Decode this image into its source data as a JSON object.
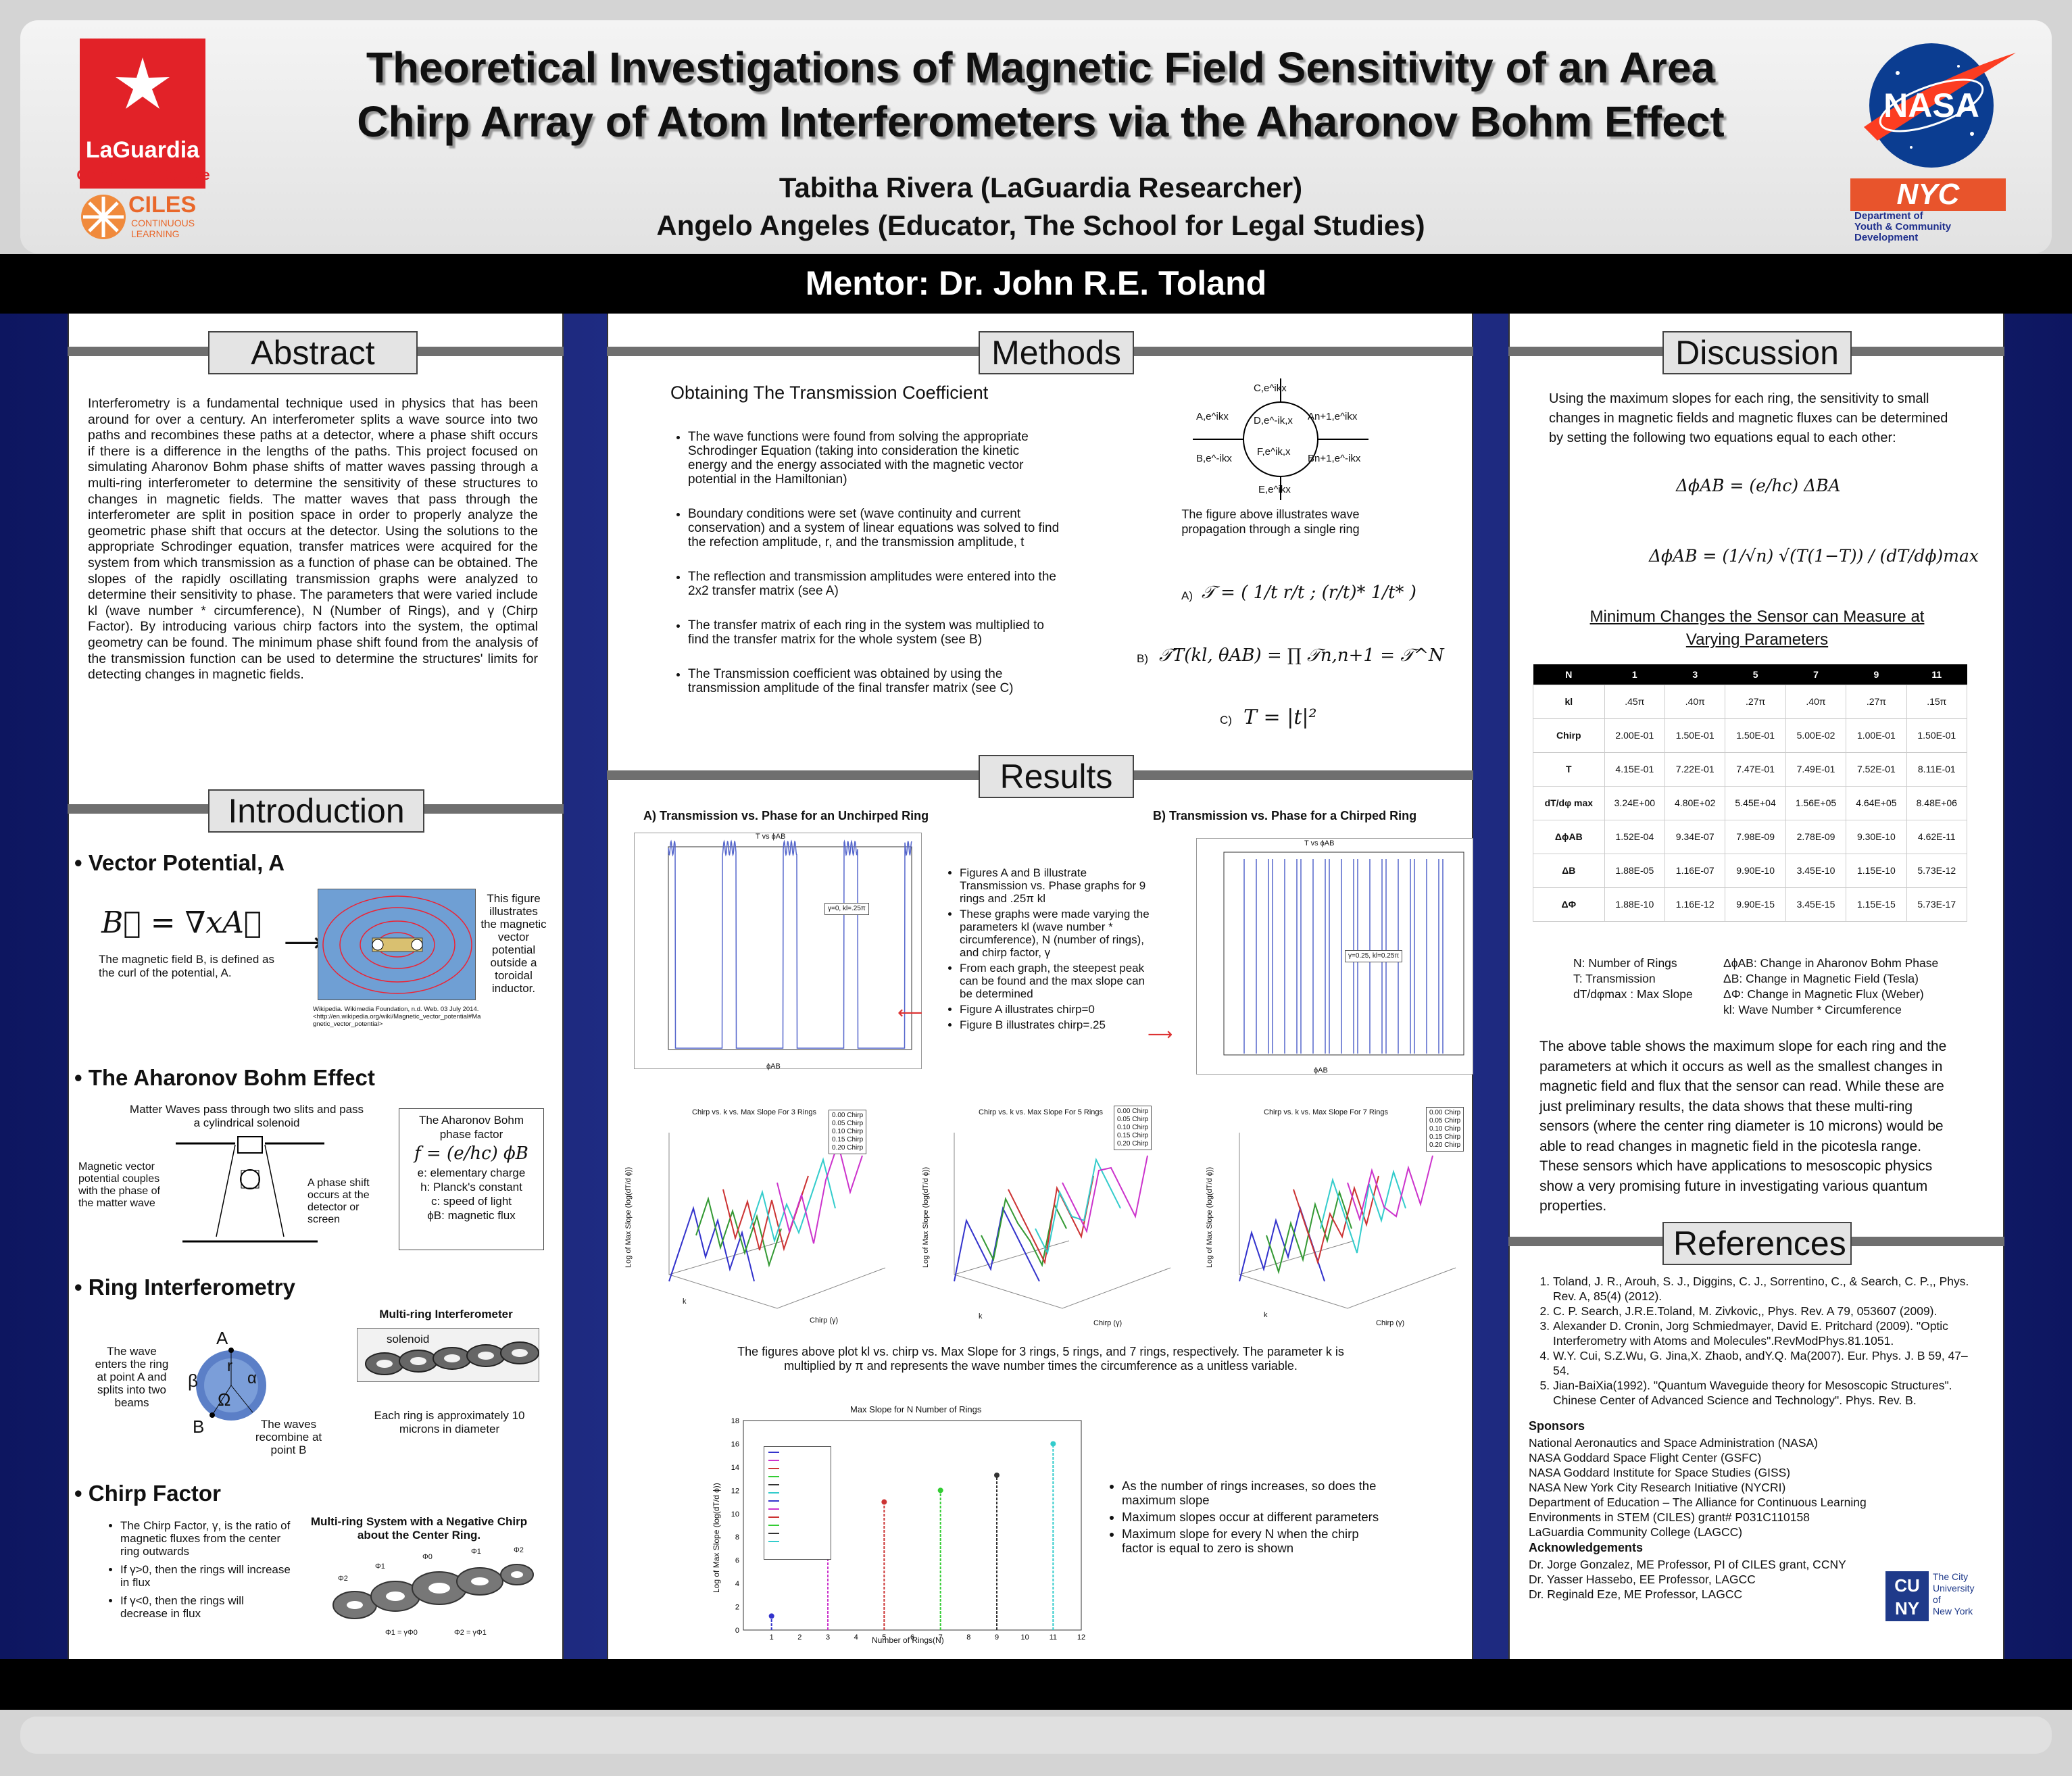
{
  "header": {
    "title_line1": "Theoretical Investigations of Magnetic Field Sensitivity of an Area",
    "title_line2": "Chirp Array of Atom Interferometers via the Aharonov Bohm Effect",
    "author1": "Tabitha Rivera (LaGuardia Researcher)",
    "author2": "Angelo Angeles (Educator, The School for Legal Studies)",
    "mentor": "Mentor:  Dr. John R.E. Toland",
    "logo_laguardia_line1": "LaGuardia",
    "logo_laguardia_line2": "Community College",
    "logo_ciles": "CILES",
    "logo_ciles_sub1": "CONTINUOUS",
    "logo_ciles_sub2": "LEARNING",
    "logo_nasa": "NASA",
    "logo_nyc": "NYC",
    "logo_nyc_sub1": "Department of",
    "logo_nyc_sub2": "Youth & Community",
    "logo_nyc_sub3": "Development"
  },
  "abstract": {
    "heading": "Abstract",
    "text": "Interferometry is a fundamental technique used in physics that has been around for over a century. An interferometer splits a wave source into two paths and recombines these paths at a detector, where a phase shift occurs if there is a difference in the lengths of the paths. This project focused on simulating Aharonov Bohm phase shifts of matter waves passing through a multi-ring interferometer to determine the sensitivity of these structures to changes in magnetic fields. The matter waves that pass through the interferometer are split in position space in order to properly analyze the geometric phase shift that occurs at the detector. Using the solutions to the appropriate Schrodinger equation, transfer matrices were acquired for the system from which transmission as a function of phase can be obtained. The slopes of the rapidly oscillating transmission graphs were analyzed to determine their sensitivity to phase. The parameters that were varied include kl (wave number * circumference), N (Number of Rings), and γ (Chirp Factor). By introducing various chirp factors into the system, the optimal geometry can be found. The minimum phase shift found from the analysis of the transmission function can be used to determine the structures' limits for detecting changes in magnetic fields."
  },
  "introduction": {
    "heading": "Introduction",
    "vp_title": "Vector Potential, A",
    "vp_eq": "B⃗ = ∇xA⃗",
    "vp_text": "The magnetic field B, is defined as the curl of the potential, A.",
    "vp_fig_text": "This figure illustrates the magnetic vector potential outside a toroidal inductor.",
    "vp_citation": "Wikipedia. Wikimedia Foundation, n.d. Web. 03 July 2014. <http://en.wikipedia.org/wiki/Magnetic_vector_potential#Magnetic_vector_potential>",
    "ab_title": "The Aharonov Bohm Effect",
    "ab_top": "Matter Waves pass through two slits and pass a cylindrical solenoid",
    "ab_left": "Magnetic vector potential couples with the phase of the matter wave",
    "ab_right": "A phase shift occurs at the detector or screen",
    "ab_box_title": "The Aharonov Bohm phase factor",
    "ab_box_eq": "f = (e/hc) ϕB",
    "ab_box_e": "e: elementary charge",
    "ab_box_h": "h: Planck's constant",
    "ab_box_c": "c: speed of light",
    "ab_box_phi": "ϕB: magnetic flux",
    "ri_title": "Ring Interferometry",
    "ri_left": "The wave enters the ring at point A and splits into two beams",
    "ri_right": "The waves recombine at point B",
    "ri_label_a": "A",
    "ri_label_b": "B",
    "ri_r": "r",
    "ri_alpha": "α",
    "ri_beta": "β",
    "ri_omega": "Ω",
    "mr_title": "Multi-ring Interferometer",
    "mr_solenoid": "solenoid",
    "mr_caption": "Each ring is approximately 10 microns in diameter",
    "cf_title": "Chirp Factor",
    "cf_bullets": [
      "The Chirp Factor, γ, is the ratio of magnetic fluxes from the center ring outwards",
      "If γ>0, then the rings will increase in flux",
      "If γ<0, then the rings will decrease in flux"
    ],
    "cf_fig_title": "Multi-ring System with a Negative Chirp about the Center Ring.",
    "cf_fig_labels": [
      "Φ2",
      "Φ1",
      "Φ0",
      "Φ1",
      "Φ2"
    ],
    "cf_fig_bottom1": "Φ1 = γΦ0",
    "cf_fig_bottom2": "Φ2 = γΦ1"
  },
  "methods": {
    "heading": "Methods",
    "subtitle": "Obtaining The Transmission Coefficient",
    "bullets": [
      "The wave functions were found from solving the appropriate Schrodinger Equation (taking into consideration the kinetic energy and the energy associated with the magnetic vector potential in the Hamiltonian)",
      "Boundary conditions were set (wave continuity and current conservation) and a system of linear equations was solved to find the refection amplitude, r, and the transmission amplitude, t",
      "The reflection and transmission amplitudes were entered into the 2x2 transfer matrix (see A)",
      "The transfer matrix of each ring in the system was multiplied to find the transfer matrix for the whole system (see B)",
      "The Transmission coefficient was obtained by using the transmission amplitude of the final transfer matrix (see C)"
    ],
    "ring_caption": "The figure above illustrates wave propagation through a single ring",
    "ring_labels": [
      "C,e^ikx",
      "A,e^ikx",
      "D,e^-ik,x",
      "An+1,e^ikx",
      "F,e^ik,x",
      "B,e^-ikx",
      "Bn+1,e^-ikx",
      "E,e^ikx"
    ],
    "eq_a_label": "A)",
    "eq_a": "𝒯 = ( 1/t   r/t ; (r/t)*   1/t* )",
    "eq_b_label": "B)",
    "eq_b": "𝒯T(kl, θAB) = ∏ 𝒯n,n+1 = 𝒯^N",
    "eq_c_label": "C)",
    "eq_c": "T = |t|²"
  },
  "results": {
    "heading": "Results",
    "fig_a_title": "A) Transmission vs. Phase for an Unchirped Ring",
    "fig_b_title": "B) Transmission vs. Phase for a Chirped Ring",
    "fig_a_plot_title": "T vs ϕAB",
    "fig_b_plot_title": "T vs ϕAB",
    "fig_a_legend": "γ=0, kl=.25π",
    "fig_b_legend": "γ=0.25, kl=0.25π",
    "fig_ylabel": "T",
    "fig_xlabel": "ϕAB",
    "bullets": [
      "Figures A and B illustrate Transmission vs. Phase graphs for 9 rings and .25π kl",
      "These graphs were made varying the parameters kl (wave number * circumference), N (number of rings), and chirp factor, γ",
      "From each graph, the steepest peak can be found and the max slope can be determined",
      "Figure A illustrates chirp=0",
      "Figure B illustrates chirp=.25"
    ],
    "chart3_titles": [
      "Chirp vs. k vs. Max Slope For 3 Rings",
      "Chirp vs. k vs. Max Slope For 5 Rings",
      "Chirp vs. k vs. Max Slope For 7 Rings"
    ],
    "chart3_legend": [
      "0.00 Chirp",
      "0.05 Chirp",
      "0.10 Chirp",
      "0.15 Chirp",
      "0.20 Chirp"
    ],
    "chart3_zlabel": "Log of Max Slope (log(dT/d ϕ))",
    "chart3_xlabel": "k",
    "chart3_ylabel": "Chirp (γ)",
    "chart3_caption": "The figures above plot kl vs. chirp vs. Max Slope for 3 rings, 5 rings, and 7 rings, respectively. The parameter k is multiplied by π and represents the wave number times the circumference as a unitless variable.",
    "maxslope_title": "Max Slope for N Number of Rings",
    "maxslope_xlabel": "Number of Rings(N)",
    "maxslope_ylabel": "Log of Max Slope (log(dT/d ϕ))",
    "maxslope_bullets": [
      "As the number of rings increases, so does the maximum slope",
      "Maximum slopes occur at different parameters",
      "Maximum slope for every N when the chirp factor is equal to zero is shown"
    ]
  },
  "discussion": {
    "heading": "Discussion",
    "intro": "Using the maximum slopes for each ring, the sensitivity to small changes in magnetic fields and magnetic fluxes can be determined by setting the following two equations equal to each other:",
    "eq1": "ΔϕAB = (e/hc) ΔBA",
    "eq2": "ΔϕAB = (1/√n) √(T(1−T)) / (dT/dϕ)max",
    "table_title": "Minimum Changes the Sensor can Measure at Varying Parameters",
    "table_head": [
      "N",
      "1",
      "3",
      "5",
      "7",
      "9",
      "11"
    ],
    "table_rows": [
      [
        "kl",
        ".45π",
        ".40π",
        ".27π",
        ".40π",
        ".27π",
        ".15π"
      ],
      [
        "Chirp",
        "2.00E-01",
        "1.50E-01",
        "1.50E-01",
        "5.00E-02",
        "1.00E-01",
        "1.50E-01"
      ],
      [
        "T",
        "4.15E-01",
        "7.22E-01",
        "7.47E-01",
        "7.49E-01",
        "7.52E-01",
        "8.11E-01"
      ],
      [
        "dT/dφ max",
        "3.24E+00",
        "4.80E+02",
        "5.45E+04",
        "1.56E+05",
        "4.64E+05",
        "8.48E+06"
      ],
      [
        "ΔϕAB",
        "1.52E-04",
        "9.34E-07",
        "7.98E-09",
        "2.78E-09",
        "9.30E-10",
        "4.62E-11"
      ],
      [
        "ΔB",
        "1.88E-05",
        "1.16E-07",
        "9.90E-10",
        "3.45E-10",
        "1.15E-10",
        "5.73E-12"
      ],
      [
        "ΔΦ",
        "1.88E-10",
        "1.16E-12",
        "9.90E-15",
        "3.45E-15",
        "1.15E-15",
        "5.73E-17"
      ]
    ],
    "legend_left": [
      "N: Number of Rings",
      "T: Transmission",
      "dT/dφmax : Max Slope"
    ],
    "legend_right": [
      "ΔϕAB: Change in Aharonov Bohm Phase",
      "ΔB: Change in Magnetic Field (Tesla)",
      "ΔΦ: Change in Magnetic Flux (Weber)",
      "kl: Wave Number * Circumference"
    ],
    "conclusion": "The above table shows the maximum slope for each ring and the parameters at which it occurs as well as the smallest changes in magnetic field and flux that the sensor can read. While these are just preliminary results, the data shows that these multi-ring sensors (where the center ring diameter is 10 microns) would be able to read changes in magnetic field in the picotesla range. These sensors which have applications to mesoscopic physics show a very promising future in investigating various quantum properties."
  },
  "references": {
    "heading": "References",
    "items": [
      "Toland, J. R., Arouh, S. J., Diggins, C. J., Sorrentino, C., & Search, C. P.,, Phys. Rev. A, 85(4) (2012).",
      "C. P. Search, J.R.E.Toland, M. Zivkovic,, Phys. Rev. A 79, 053607 (2009).",
      "Alexander D. Cronin, Jorg Schmiedmayer, David E. Pritchard (2009). \"Optic Interferometry with Atoms and Molecules\".RevModPhys.81.1051.",
      "W.Y. Cui, S.Z.Wu, G. Jina,X. Zhaob, andY.Q. Ma(2007). Eur. Phys. J. B 59, 47–54.",
      "Jian-BaiXia(1992). \"Quantum Waveguide theory for Mesoscopic Structures\". Chinese Center of Advanced Science and Technology\". Phys. Rev. B."
    ],
    "sponsors_title": "Sponsors",
    "sponsors": [
      "National Aeronautics and Space Administration (NASA)",
      "NASA Goddard Space Flight Center (GSFC)",
      "NASA Goddard Institute for Space Studies (GISS)",
      "NASA New York City Research Initiative (NYCRI)",
      "Department of Education – The Alliance for Continuous Learning",
      "Environments in STEM (CILES) grant# P031C110158",
      "LaGuardia Community College (LAGCC)"
    ],
    "ack_title": "Acknowledgements",
    "acks": [
      "Dr. Jorge Gonzalez, ME Professor, PI of CILES grant, CCNY",
      "Dr. Yasser Hassebo, EE Professor, LAGCC",
      "Dr. Reginald Eze, ME Professor, LAGCC"
    ],
    "cuny_logo": "CU NY",
    "cuny_text1": "The City",
    "cuny_text2": "University",
    "cuny_text3": "of",
    "cuny_text4": "New York"
  },
  "chart_data": {
    "type": "scatter",
    "title": "Max Slope for N Number of Rings",
    "xlabel": "Number of Rings(N)",
    "ylabel": "Log of Max Slope (log(dT/d ϕ))",
    "xlim": [
      0,
      12
    ],
    "ylim": [
      0,
      18
    ],
    "x": [
      1,
      3,
      5,
      7,
      9,
      11
    ],
    "values": [
      1.2,
      6.3,
      11,
      12,
      13.3,
      16
    ],
    "colors": [
      "#3333cc",
      "#cc33cc",
      "#cc3333",
      "#33cc33",
      "#333333",
      "#33cccc"
    ]
  }
}
